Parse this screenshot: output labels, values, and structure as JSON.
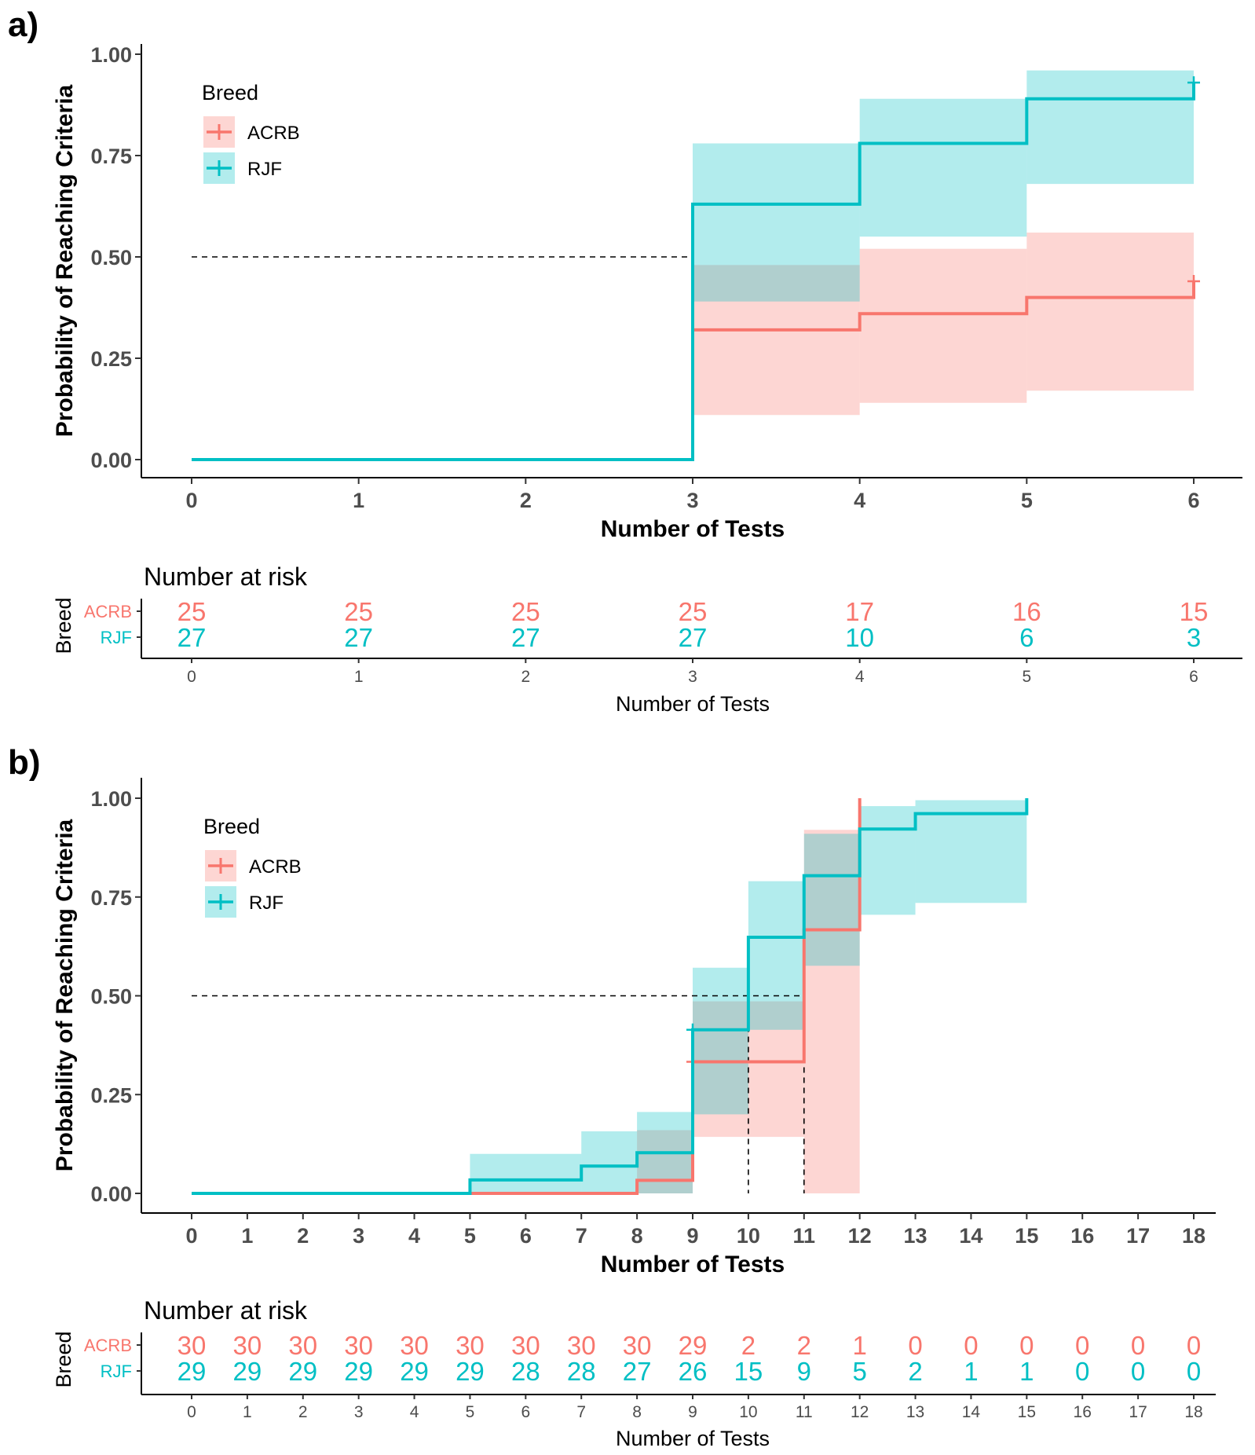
{
  "chart_data": [
    {
      "type": "line",
      "subtype": "kaplan-meier",
      "panel_label": "a)",
      "ylabel": "Probability of Reaching Criteria",
      "xlabel": "Number of Tests",
      "xlim": [
        0,
        6
      ],
      "ylim": [
        0,
        1
      ],
      "x_ticks": [
        "0",
        "1",
        "2",
        "3",
        "4",
        "5",
        "6"
      ],
      "y_ticks": [
        "0.00",
        "0.25",
        "0.50",
        "0.75",
        "1.00"
      ],
      "legend": {
        "title": "Breed",
        "position": "top-left",
        "entries": [
          "ACRB",
          "RJF"
        ]
      },
      "median_line": {
        "y": 0.5,
        "x_values": [
          3
        ]
      },
      "series": [
        {
          "name": "ACRB",
          "color": "#F8766D",
          "fill": "#FCD3D1",
          "steps": [
            {
              "x0": 0,
              "x1": 3,
              "y": 0
            },
            {
              "x0": 3,
              "x1": 4,
              "y": 0.32,
              "lo": 0.11,
              "hi": 0.48
            },
            {
              "x0": 4,
              "x1": 5,
              "y": 0.36,
              "lo": 0.14,
              "hi": 0.52
            },
            {
              "x0": 5,
              "x1": 6,
              "y": 0.4,
              "lo": 0.17,
              "hi": 0.56
            }
          ],
          "end": {
            "x": 6,
            "y": 0.4,
            "censor_y": 0.44,
            "rise": 0.44
          }
        },
        {
          "name": "RJF",
          "color": "#00BFC4",
          "fill": "#B2EBED",
          "steps": [
            {
              "x0": 0,
              "x1": 3,
              "y": 0
            },
            {
              "x0": 3,
              "x1": 4,
              "y": 0.63,
              "lo": 0.39,
              "hi": 0.78
            },
            {
              "x0": 4,
              "x1": 5,
              "y": 0.78,
              "lo": 0.55,
              "hi": 0.89
            },
            {
              "x0": 5,
              "x1": 6,
              "y": 0.89,
              "lo": 0.68,
              "hi": 0.96
            }
          ],
          "end": {
            "x": 6,
            "y": 0.89,
            "censor_y": 0.93,
            "rise": 0.93
          }
        }
      ],
      "risk_table": {
        "title": "Number at risk",
        "ylabel": "Breed",
        "xlabel": "Number of Tests",
        "groups": [
          "ACRB",
          "RJF"
        ],
        "times": [
          "0",
          "1",
          "2",
          "3",
          "4",
          "5",
          "6"
        ],
        "counts": {
          "ACRB": [
            25,
            25,
            25,
            25,
            17,
            16,
            15
          ],
          "RJF": [
            27,
            27,
            27,
            27,
            10,
            6,
            3
          ]
        }
      }
    },
    {
      "type": "line",
      "subtype": "kaplan-meier",
      "panel_label": "b)",
      "ylabel": "Probability of Reaching Criteria",
      "xlabel": "Number of Tests",
      "xlim": [
        0,
        18
      ],
      "ylim": [
        0,
        1
      ],
      "x_ticks": [
        "0",
        "1",
        "2",
        "3",
        "4",
        "5",
        "6",
        "7",
        "8",
        "9",
        "10",
        "11",
        "12",
        "13",
        "14",
        "15",
        "16",
        "17",
        "18"
      ],
      "y_ticks": [
        "0.00",
        "0.25",
        "0.50",
        "0.75",
        "1.00"
      ],
      "legend": {
        "title": "Breed",
        "position": "top-left",
        "entries": [
          "ACRB",
          "RJF"
        ]
      },
      "median_line": {
        "y": 0.5,
        "x_values": [
          10,
          11
        ]
      },
      "series": [
        {
          "name": "ACRB",
          "color": "#F8766D",
          "fill": "#FCD3D1",
          "steps": [
            {
              "x0": 0,
              "x1": 8,
              "y": 0
            },
            {
              "x0": 8,
              "x1": 9,
              "y": 0.033,
              "lo": 0,
              "hi": 0.16
            },
            {
              "x0": 9,
              "x1": 11,
              "y": 0.333,
              "lo": 0.143,
              "hi": 0.486
            },
            {
              "x0": 11,
              "x1": 12,
              "y": 0.667,
              "lo": 0,
              "hi": 0.92
            }
          ],
          "end": {
            "x": 12,
            "y": 0.667,
            "rise": 1.0
          },
          "censors": [
            {
              "x": 9,
              "y": 0.333
            }
          ]
        },
        {
          "name": "RJF",
          "color": "#00BFC4",
          "fill": "#B2EBED",
          "steps": [
            {
              "x0": 0,
              "x1": 5,
              "y": 0
            },
            {
              "x0": 5,
              "x1": 7,
              "y": 0.034,
              "lo": 0,
              "hi": 0.1
            },
            {
              "x0": 7,
              "x1": 8,
              "y": 0.069,
              "lo": 0,
              "hi": 0.157
            },
            {
              "x0": 8,
              "x1": 9,
              "y": 0.103,
              "lo": 0,
              "hi": 0.206
            },
            {
              "x0": 9,
              "x1": 10,
              "y": 0.414,
              "lo": 0.2,
              "hi": 0.571
            },
            {
              "x0": 10,
              "x1": 11,
              "y": 0.648,
              "lo": 0.414,
              "hi": 0.79
            },
            {
              "x0": 11,
              "x1": 12,
              "y": 0.804,
              "lo": 0.576,
              "hi": 0.91
            },
            {
              "x0": 12,
              "x1": 13,
              "y": 0.922,
              "lo": 0.705,
              "hi": 0.98
            },
            {
              "x0": 13,
              "x1": 15,
              "y": 0.961,
              "lo": 0.735,
              "hi": 0.995
            }
          ],
          "end": {
            "x": 15,
            "y": 0.961,
            "rise": 1.0
          },
          "censors": [
            {
              "x": 9,
              "y": 0.414
            }
          ]
        }
      ],
      "risk_table": {
        "title": "Number at risk",
        "ylabel": "Breed",
        "xlabel": "Number of Tests",
        "groups": [
          "ACRB",
          "RJF"
        ],
        "times": [
          "0",
          "1",
          "2",
          "3",
          "4",
          "5",
          "6",
          "7",
          "8",
          "9",
          "10",
          "11",
          "12",
          "13",
          "14",
          "15",
          "16",
          "17",
          "18"
        ],
        "counts": {
          "ACRB": [
            30,
            30,
            30,
            30,
            30,
            30,
            30,
            30,
            30,
            29,
            2,
            2,
            1,
            0,
            0,
            0,
            0,
            0,
            0
          ],
          "RJF": [
            29,
            29,
            29,
            29,
            29,
            29,
            28,
            28,
            27,
            26,
            15,
            9,
            5,
            2,
            1,
            1,
            0,
            0,
            0
          ]
        }
      }
    }
  ]
}
